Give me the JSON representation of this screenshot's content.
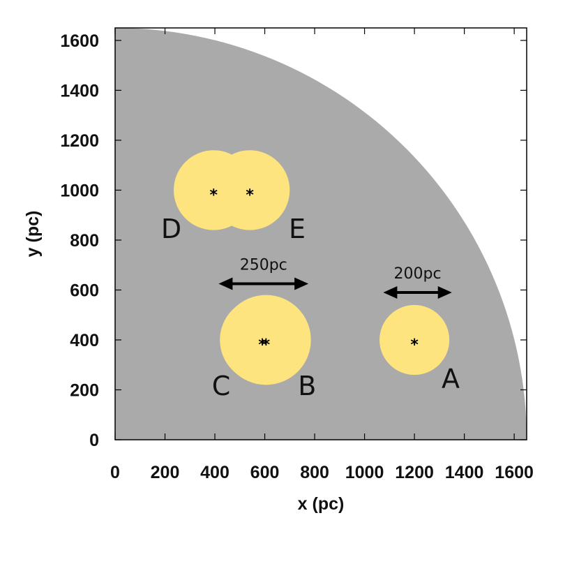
{
  "chart_data": {
    "type": "scatter",
    "xlabel": "x (pc)",
    "ylabel": "y (pc)",
    "xlim": [
      0,
      1650
    ],
    "ylim": [
      0,
      1650
    ],
    "xticks": [
      0,
      200,
      400,
      600,
      800,
      1000,
      1200,
      1400,
      1600
    ],
    "yticks": [
      0,
      200,
      400,
      600,
      800,
      1000,
      1200,
      1400,
      1600
    ],
    "background_region": {
      "shape": "quarter-disk",
      "center": [
        0,
        0
      ],
      "radius": 1650,
      "color": "#aaaaaa"
    },
    "bubble_color": "#fde47f",
    "bubbles": [
      {
        "label": "A",
        "center": [
          1200,
          400
        ],
        "radius": 140,
        "stars": [
          [
            1200,
            400
          ]
        ]
      },
      {
        "label": "B",
        "center": [
          605,
          400
        ],
        "radius": 180,
        "stars": [
          [
            605,
            400
          ]
        ]
      },
      {
        "label": "C",
        "center": [
          590,
          400
        ],
        "radius": 170,
        "stars": [
          [
            590,
            400
          ]
        ]
      },
      {
        "label": "D",
        "center": [
          395,
          1000
        ],
        "radius": 160,
        "stars": [
          [
            395,
            1000
          ]
        ]
      },
      {
        "label": "E",
        "center": [
          540,
          1000
        ],
        "radius": 160,
        "stars": [
          [
            540,
            1000
          ]
        ]
      }
    ],
    "point_labels": [
      {
        "text": "A",
        "pos": [
          1345,
          245
        ]
      },
      {
        "text": "B",
        "pos": [
          770,
          215
        ]
      },
      {
        "text": "C",
        "pos": [
          425,
          215
        ]
      },
      {
        "text": "D",
        "pos": [
          225,
          845
        ]
      },
      {
        "text": "E",
        "pos": [
          730,
          845
        ]
      }
    ],
    "scale_bars": [
      {
        "label": "250pc",
        "from": [
          415,
          625
        ],
        "to": [
          775,
          625
        ]
      },
      {
        "label": "200pc",
        "from": [
          1075,
          590
        ],
        "to": [
          1350,
          590
        ]
      }
    ]
  }
}
